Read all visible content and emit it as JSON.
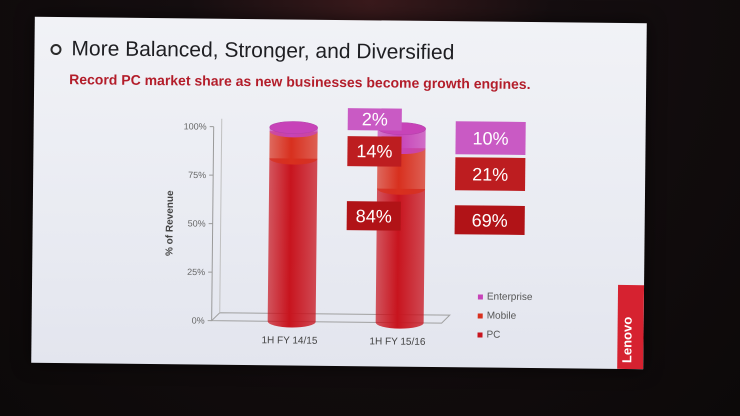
{
  "slide": {
    "title": "More Balanced, Stronger, and Diversified",
    "subtitle": "Record PC market share as new businesses become growth engines.",
    "brand": "Lenovo"
  },
  "colors": {
    "pc": "#c8141e",
    "mobile": "#d8301e",
    "enterprise": "#c743b8",
    "label_bg_enterprise": "#c95ac4",
    "label_bg_mobile": "#bd1d20",
    "label_bg_pc": "#b11317",
    "brand": "#d62230"
  },
  "chart_data": {
    "type": "bar",
    "stacked": true,
    "style": "3d-cylinder",
    "categories": [
      "1H FY 14/15",
      "1H FY 15/16"
    ],
    "series": [
      {
        "name": "PC",
        "values": [
          84,
          69
        ],
        "labels": [
          "84%",
          "69%"
        ]
      },
      {
        "name": "Mobile",
        "values": [
          14,
          21
        ],
        "labels": [
          "14%",
          "21%"
        ]
      },
      {
        "name": "Enterprise",
        "values": [
          2,
          10
        ],
        "labels": [
          "2%",
          "10%"
        ]
      }
    ],
    "ylabel": "% of Revenue",
    "yticks": [
      "0%",
      "25%",
      "50%",
      "75%",
      "100%"
    ],
    "ylim": [
      0,
      100
    ],
    "legend_position": "bottom-right",
    "legend_order": [
      "Enterprise",
      "Mobile",
      "PC"
    ]
  }
}
